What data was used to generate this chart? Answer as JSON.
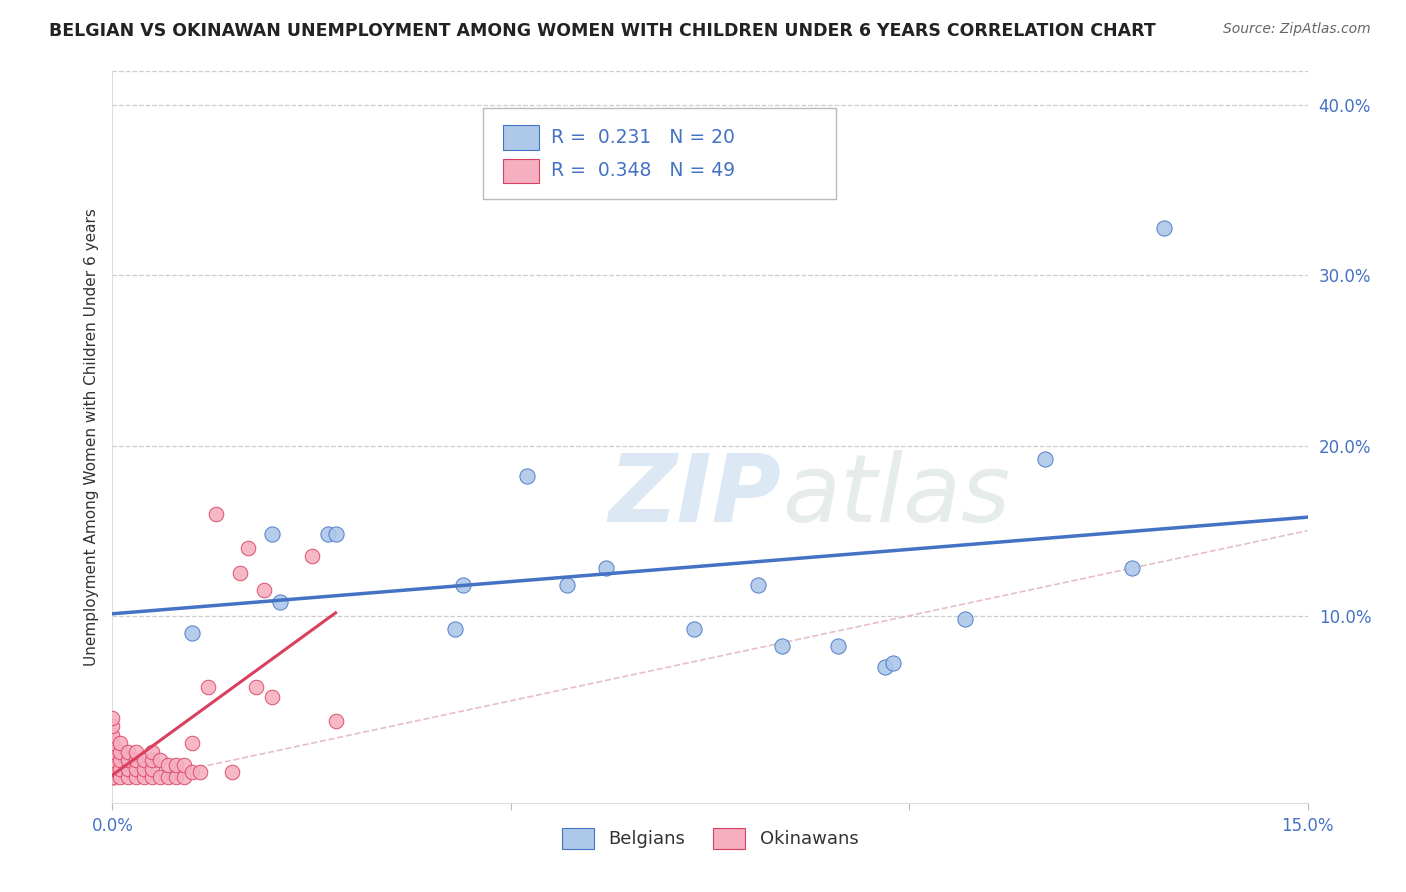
{
  "title": "BELGIAN VS OKINAWAN UNEMPLOYMENT AMONG WOMEN WITH CHILDREN UNDER 6 YEARS CORRELATION CHART",
  "source": "Source: ZipAtlas.com",
  "ylabel": "Unemployment Among Women with Children Under 6 years",
  "xlim": [
    0.0,
    0.15
  ],
  "ylim": [
    -0.01,
    0.42
  ],
  "yticks": [
    0.1,
    0.2,
    0.3,
    0.4
  ],
  "xticks": [
    0.0,
    0.05,
    0.1,
    0.15
  ],
  "belgians_R": 0.231,
  "belgians_N": 20,
  "okinawans_R": 0.348,
  "okinawans_N": 49,
  "belgians_color": "#adc8e8",
  "okinawans_color": "#f5afc0",
  "belgians_line_color": "#4472c4",
  "okinawans_line_color": "#d94060",
  "diagonal_color": "#e0b0b8",
  "belgians_x": [
    0.01,
    0.02,
    0.021,
    0.027,
    0.028,
    0.043,
    0.044,
    0.052,
    0.057,
    0.062,
    0.073,
    0.081,
    0.084,
    0.091,
    0.097,
    0.098,
    0.107,
    0.117,
    0.128,
    0.132
  ],
  "belgians_y": [
    0.09,
    0.148,
    0.108,
    0.148,
    0.148,
    0.092,
    0.118,
    0.182,
    0.118,
    0.128,
    0.092,
    0.118,
    0.082,
    0.082,
    0.07,
    0.072,
    0.098,
    0.192,
    0.128,
    0.328
  ],
  "okinawans_x": [
    0.0,
    0.0,
    0.0,
    0.0,
    0.0,
    0.0,
    0.0,
    0.0,
    0.001,
    0.001,
    0.001,
    0.001,
    0.001,
    0.002,
    0.002,
    0.002,
    0.002,
    0.003,
    0.003,
    0.003,
    0.003,
    0.004,
    0.004,
    0.004,
    0.005,
    0.005,
    0.005,
    0.005,
    0.006,
    0.006,
    0.007,
    0.007,
    0.008,
    0.008,
    0.009,
    0.009,
    0.01,
    0.01,
    0.011,
    0.012,
    0.013,
    0.015,
    0.016,
    0.017,
    0.018,
    0.019,
    0.02,
    0.025,
    0.028
  ],
  "okinawans_y": [
    0.005,
    0.01,
    0.015,
    0.02,
    0.025,
    0.03,
    0.035,
    0.04,
    0.005,
    0.01,
    0.015,
    0.02,
    0.025,
    0.005,
    0.01,
    0.015,
    0.02,
    0.005,
    0.01,
    0.015,
    0.02,
    0.005,
    0.01,
    0.015,
    0.005,
    0.01,
    0.015,
    0.02,
    0.005,
    0.015,
    0.005,
    0.012,
    0.005,
    0.012,
    0.005,
    0.012,
    0.008,
    0.025,
    0.008,
    0.058,
    0.16,
    0.008,
    0.125,
    0.14,
    0.058,
    0.115,
    0.052,
    0.135,
    0.038
  ],
  "watermark_zip": "ZIP",
  "watermark_atlas": "atlas",
  "watermark_color": "#c8ddf0",
  "background_color": "#ffffff",
  "grid_color": "#cccccc"
}
